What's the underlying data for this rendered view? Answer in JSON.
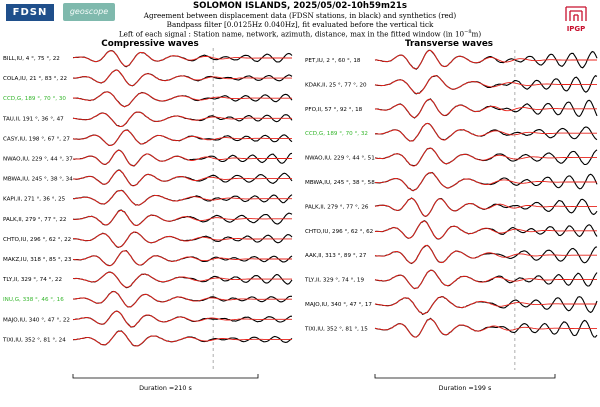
{
  "header": {
    "title": "SOLOMON ISLANDS, 2025/05/02-10h59m21s",
    "line1": "Agreement between displacement data (FDSN stations, in black) and synthetics (red)",
    "line2": "Bandpass filter [0.0125Hz 0.040Hz], fit evaluated before the vertical tick",
    "line3": "Left of each signal : Station name, network, azimuth, distance, max in the fitted window (in 10",
    "line3_exp": "−8",
    "line3_end": "m)",
    "logo_fdsn": "FDSN",
    "logo_geoscope": "geoscope",
    "logo_ipgp": "IPGP"
  },
  "colors": {
    "data": "#000000",
    "synthetic": "#e8231b",
    "highlight": "#33b52a"
  },
  "chart_data": [
    {
      "type": "line",
      "title": "Compressive waves",
      "duration_label": "Duration =210 s",
      "series": [
        {
          "name": "data",
          "color": "#000000"
        },
        {
          "name": "synthetics",
          "color": "#e8231b"
        }
      ],
      "stations": [
        {
          "station": "BILL",
          "network": "IU",
          "azimuth": 4,
          "distance": 75,
          "max": 22,
          "highlight": false
        },
        {
          "station": "COLA",
          "network": "IU",
          "azimuth": 21,
          "distance": 83,
          "max": 22,
          "highlight": false
        },
        {
          "station": "CCD",
          "network": "G",
          "azimuth": 189,
          "distance": 70,
          "max": 30,
          "highlight": true
        },
        {
          "station": "TAU",
          "network": "II",
          "azimuth": 191,
          "distance": 36,
          "max": 47,
          "highlight": false
        },
        {
          "station": "CASY",
          "network": "IU",
          "azimuth": 198,
          "distance": 67,
          "max": 27,
          "highlight": false
        },
        {
          "station": "NWAO",
          "network": "IU",
          "azimuth": 229,
          "distance": 44,
          "max": 37,
          "highlight": false
        },
        {
          "station": "MBWA",
          "network": "IU",
          "azimuth": 245,
          "distance": 38,
          "max": 34,
          "highlight": false
        },
        {
          "station": "KAPI",
          "network": "II",
          "azimuth": 271,
          "distance": 36,
          "max": 25,
          "highlight": false
        },
        {
          "station": "PALK",
          "network": "II",
          "azimuth": 279,
          "distance": 77,
          "max": 22,
          "highlight": false
        },
        {
          "station": "CHTO",
          "network": "IU",
          "azimuth": 296,
          "distance": 62,
          "max": 22,
          "highlight": false
        },
        {
          "station": "MAKZ",
          "network": "IU",
          "azimuth": 318,
          "distance": 85,
          "max": 23,
          "highlight": false
        },
        {
          "station": "TLY",
          "network": "II",
          "azimuth": 329,
          "distance": 74,
          "max": 22,
          "highlight": false
        },
        {
          "station": "INU",
          "network": "G",
          "azimuth": 338,
          "distance": 46,
          "max": 16,
          "highlight": true
        },
        {
          "station": "MAJO",
          "network": "IU",
          "azimuth": 340,
          "distance": 47,
          "max": 22,
          "highlight": false
        },
        {
          "station": "TIXI",
          "network": "IU",
          "azimuth": 352,
          "distance": 81,
          "max": 24,
          "highlight": false
        }
      ]
    },
    {
      "type": "line",
      "title": "Transverse waves",
      "duration_label": "Duration =199 s",
      "series": [
        {
          "name": "data",
          "color": "#000000"
        },
        {
          "name": "synthetics",
          "color": "#e8231b"
        }
      ],
      "stations": [
        {
          "station": "PET",
          "network": "IU",
          "azimuth": 2,
          "distance": 60,
          "max": 18,
          "highlight": false
        },
        {
          "station": "KDAK",
          "network": "II",
          "azimuth": 25,
          "distance": 77,
          "max": 20,
          "highlight": false
        },
        {
          "station": "PFO",
          "network": "II",
          "azimuth": 57,
          "distance": 92,
          "max": 18,
          "highlight": false
        },
        {
          "station": "CCD",
          "network": "G",
          "azimuth": 189,
          "distance": 70,
          "max": 32,
          "highlight": true
        },
        {
          "station": "NWAO",
          "network": "IU",
          "azimuth": 229,
          "distance": 44,
          "max": 51,
          "highlight": false
        },
        {
          "station": "MBWA",
          "network": "IU",
          "azimuth": 245,
          "distance": 38,
          "max": 58,
          "highlight": false
        },
        {
          "station": "PALK",
          "network": "II",
          "azimuth": 279,
          "distance": 77,
          "max": 26,
          "highlight": false
        },
        {
          "station": "CHTO",
          "network": "IU",
          "azimuth": 296,
          "distance": 62,
          "max": 62,
          "highlight": false
        },
        {
          "station": "AAK",
          "network": "II",
          "azimuth": 313,
          "distance": 89,
          "max": 27,
          "highlight": false
        },
        {
          "station": "TLY",
          "network": "II",
          "azimuth": 329,
          "distance": 74,
          "max": 19,
          "highlight": false
        },
        {
          "station": "MAJO",
          "network": "IU",
          "azimuth": 340,
          "distance": 47,
          "max": 17,
          "highlight": false
        },
        {
          "station": "TIXI",
          "network": "IU",
          "azimuth": 352,
          "distance": 81,
          "max": 15,
          "highlight": false
        }
      ]
    }
  ]
}
